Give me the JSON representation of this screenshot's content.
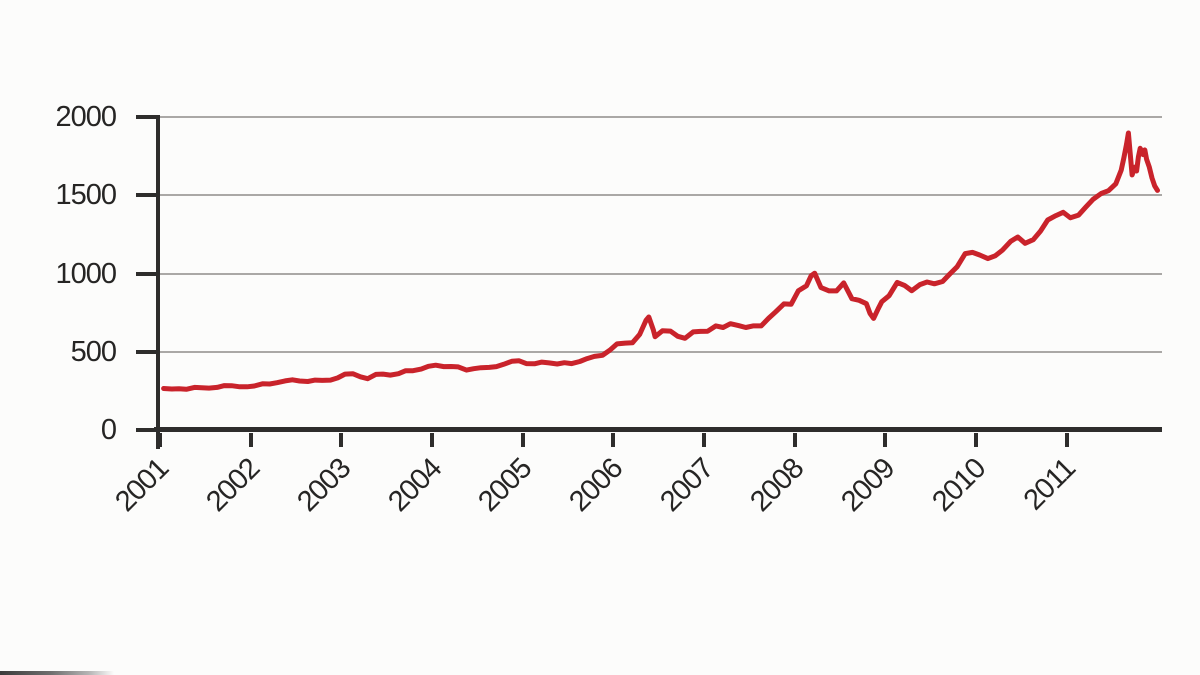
{
  "chart_data": {
    "type": "line",
    "title": "",
    "xlabel": "",
    "ylabel": "",
    "grid": true,
    "legend": "none",
    "x_domain": [
      2001,
      2012.05
    ],
    "y_domain": [
      0,
      2000
    ],
    "x_ticks": [
      {
        "value": 2001,
        "label": "2001"
      },
      {
        "value": 2002,
        "label": "2002"
      },
      {
        "value": 2003,
        "label": "2003"
      },
      {
        "value": 2004,
        "label": "2004"
      },
      {
        "value": 2005,
        "label": "2005"
      },
      {
        "value": 2006,
        "label": "2006"
      },
      {
        "value": 2007,
        "label": "2007"
      },
      {
        "value": 2008,
        "label": "2008"
      },
      {
        "value": 2009,
        "label": "2009"
      },
      {
        "value": 2010,
        "label": "2010"
      },
      {
        "value": 2011,
        "label": "2011"
      }
    ],
    "y_ticks": [
      {
        "value": 0,
        "label": "0"
      },
      {
        "value": 500,
        "label": "500"
      },
      {
        "value": 1000,
        "label": "1000"
      },
      {
        "value": 1500,
        "label": "1500"
      },
      {
        "value": 2000,
        "label": "2000"
      }
    ],
    "series": [
      {
        "name": "line-series",
        "color": "#c9232b",
        "points": [
          [
            2001.04,
            265
          ],
          [
            2001.13,
            262
          ],
          [
            2001.21,
            263
          ],
          [
            2001.29,
            260
          ],
          [
            2001.38,
            272
          ],
          [
            2001.46,
            270
          ],
          [
            2001.54,
            268
          ],
          [
            2001.63,
            272
          ],
          [
            2001.71,
            284
          ],
          [
            2001.79,
            283
          ],
          [
            2001.88,
            276
          ],
          [
            2001.96,
            276
          ],
          [
            2002.04,
            281
          ],
          [
            2002.13,
            295
          ],
          [
            2002.21,
            294
          ],
          [
            2002.29,
            302
          ],
          [
            2002.38,
            314
          ],
          [
            2002.46,
            321
          ],
          [
            2002.54,
            313
          ],
          [
            2002.63,
            310
          ],
          [
            2002.71,
            319
          ],
          [
            2002.79,
            317
          ],
          [
            2002.88,
            319
          ],
          [
            2002.96,
            333
          ],
          [
            2003.04,
            357
          ],
          [
            2003.13,
            359
          ],
          [
            2003.21,
            340
          ],
          [
            2003.29,
            328
          ],
          [
            2003.38,
            355
          ],
          [
            2003.46,
            357
          ],
          [
            2003.54,
            351
          ],
          [
            2003.63,
            360
          ],
          [
            2003.71,
            379
          ],
          [
            2003.79,
            379
          ],
          [
            2003.88,
            389
          ],
          [
            2003.96,
            407
          ],
          [
            2004.04,
            414
          ],
          [
            2004.13,
            405
          ],
          [
            2004.21,
            406
          ],
          [
            2004.29,
            403
          ],
          [
            2004.38,
            383
          ],
          [
            2004.46,
            392
          ],
          [
            2004.54,
            398
          ],
          [
            2004.63,
            400
          ],
          [
            2004.71,
            405
          ],
          [
            2004.79,
            420
          ],
          [
            2004.88,
            439
          ],
          [
            2004.96,
            442
          ],
          [
            2005.04,
            424
          ],
          [
            2005.13,
            423
          ],
          [
            2005.21,
            434
          ],
          [
            2005.29,
            429
          ],
          [
            2005.38,
            422
          ],
          [
            2005.46,
            430
          ],
          [
            2005.54,
            424
          ],
          [
            2005.63,
            438
          ],
          [
            2005.71,
            456
          ],
          [
            2005.79,
            470
          ],
          [
            2005.88,
            477
          ],
          [
            2005.96,
            510
          ],
          [
            2006.04,
            550
          ],
          [
            2006.13,
            555
          ],
          [
            2006.21,
            557
          ],
          [
            2006.29,
            611
          ],
          [
            2006.36,
            700
          ],
          [
            2006.39,
            722
          ],
          [
            2006.44,
            640
          ],
          [
            2006.46,
            596
          ],
          [
            2006.54,
            634
          ],
          [
            2006.63,
            632
          ],
          [
            2006.71,
            599
          ],
          [
            2006.79,
            586
          ],
          [
            2006.88,
            627
          ],
          [
            2006.96,
            630
          ],
          [
            2007.04,
            631
          ],
          [
            2007.13,
            665
          ],
          [
            2007.21,
            655
          ],
          [
            2007.29,
            679
          ],
          [
            2007.38,
            667
          ],
          [
            2007.46,
            655
          ],
          [
            2007.54,
            665
          ],
          [
            2007.63,
            665
          ],
          [
            2007.71,
            713
          ],
          [
            2007.79,
            755
          ],
          [
            2007.88,
            806
          ],
          [
            2007.96,
            803
          ],
          [
            2008.04,
            890
          ],
          [
            2008.13,
            922
          ],
          [
            2008.18,
            985
          ],
          [
            2008.22,
            1002
          ],
          [
            2008.29,
            910
          ],
          [
            2008.38,
            889
          ],
          [
            2008.46,
            889
          ],
          [
            2008.54,
            940
          ],
          [
            2008.63,
            839
          ],
          [
            2008.71,
            829
          ],
          [
            2008.79,
            807
          ],
          [
            2008.83,
            745
          ],
          [
            2008.87,
            713
          ],
          [
            2008.92,
            775
          ],
          [
            2008.96,
            820
          ],
          [
            2009.04,
            858
          ],
          [
            2009.13,
            943
          ],
          [
            2009.21,
            924
          ],
          [
            2009.29,
            890
          ],
          [
            2009.38,
            929
          ],
          [
            2009.46,
            946
          ],
          [
            2009.54,
            934
          ],
          [
            2009.63,
            949
          ],
          [
            2009.71,
            997
          ],
          [
            2009.79,
            1043
          ],
          [
            2009.88,
            1127
          ],
          [
            2009.96,
            1135
          ],
          [
            2010.04,
            1118
          ],
          [
            2010.13,
            1095
          ],
          [
            2010.21,
            1113
          ],
          [
            2010.29,
            1149
          ],
          [
            2010.38,
            1205
          ],
          [
            2010.46,
            1233
          ],
          [
            2010.54,
            1193
          ],
          [
            2010.63,
            1216
          ],
          [
            2010.71,
            1271
          ],
          [
            2010.79,
            1342
          ],
          [
            2010.88,
            1370
          ],
          [
            2010.96,
            1391
          ],
          [
            2011.04,
            1356
          ],
          [
            2011.13,
            1373
          ],
          [
            2011.21,
            1424
          ],
          [
            2011.29,
            1474
          ],
          [
            2011.38,
            1511
          ],
          [
            2011.46,
            1529
          ],
          [
            2011.54,
            1573
          ],
          [
            2011.6,
            1660
          ],
          [
            2011.63,
            1740
          ],
          [
            2011.66,
            1828
          ],
          [
            2011.68,
            1898
          ],
          [
            2011.7,
            1760
          ],
          [
            2011.72,
            1630
          ],
          [
            2011.75,
            1680
          ],
          [
            2011.77,
            1655
          ],
          [
            2011.79,
            1745
          ],
          [
            2011.81,
            1800
          ],
          [
            2011.84,
            1760
          ],
          [
            2011.86,
            1790
          ],
          [
            2011.88,
            1730
          ],
          [
            2011.91,
            1680
          ],
          [
            2011.94,
            1610
          ],
          [
            2011.97,
            1560
          ],
          [
            2012.0,
            1531
          ]
        ]
      }
    ]
  },
  "colors": {
    "line": "#c9232b",
    "axis": "#2e2d2c",
    "grid": "#aaa8a6",
    "label_text": "#262524",
    "background": "#fcfcfb"
  }
}
